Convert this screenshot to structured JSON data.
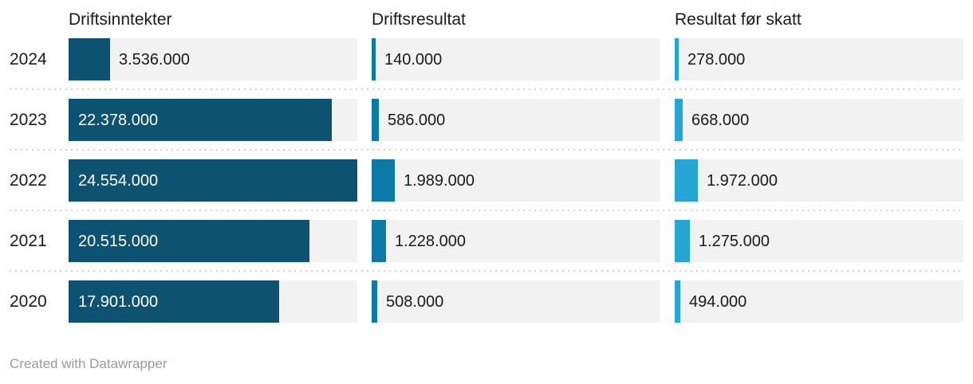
{
  "chart_data": {
    "type": "bar",
    "orientation": "horizontal",
    "title": "",
    "categories": [
      "2024",
      "2023",
      "2022",
      "2021",
      "2020"
    ],
    "series": [
      {
        "name": "Driftsinntekter",
        "color": "#0d5270",
        "values": [
          3536000,
          22378000,
          24554000,
          20515000,
          17901000
        ],
        "labels": [
          "3.536.000",
          "22.378.000",
          "24.554.000",
          "20.515.000",
          "17.901.000"
        ]
      },
      {
        "name": "Driftsresultat",
        "color": "#0b7aa6",
        "values": [
          140000,
          586000,
          1989000,
          1228000,
          508000
        ],
        "labels": [
          "140.000",
          "586.000",
          "1.989.000",
          "1.228.000",
          "508.000"
        ]
      },
      {
        "name": "Resultat før skatt",
        "color": "#25a5d6",
        "values": [
          278000,
          668000,
          1972000,
          1275000,
          494000
        ],
        "labels": [
          "278.000",
          "668.000",
          "1.972.000",
          "1.275.000",
          "494.000"
        ]
      }
    ],
    "xlim": [
      0,
      24554000
    ],
    "scale_max": 24554000,
    "track_color": "#f2f2f2",
    "grid": false,
    "legend": false
  },
  "footer": {
    "credit": "Created with Datawrapper"
  }
}
